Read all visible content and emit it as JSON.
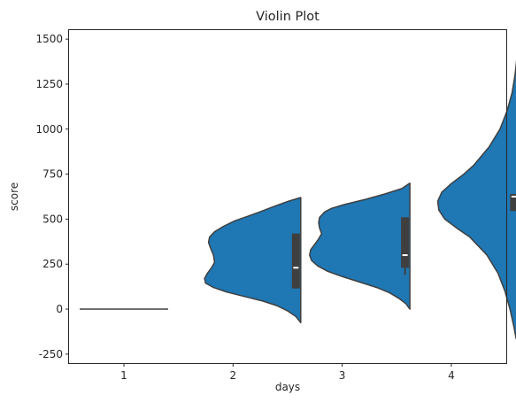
{
  "chart_data": {
    "type": "violin",
    "title": "Violin Plot",
    "xlabel": "days",
    "ylabel": "score",
    "categories": [
      "1",
      "2",
      "3",
      "4"
    ],
    "ylim": [
      -300,
      1550
    ],
    "yticks": [
      -250,
      0,
      250,
      500,
      750,
      1000,
      1250,
      1500
    ],
    "grid": false,
    "split": true,
    "colors": {
      "fill": "#1f77b4",
      "edge": "#3f3f3f",
      "box": "#3f3f3f",
      "median": "#ffffff"
    },
    "violins": [
      {
        "category": "1",
        "constant": 0,
        "profile": []
      },
      {
        "category": "2",
        "box": {
          "q1": 115,
          "median": 230,
          "q3": 420,
          "whisker_low": 115,
          "whisker_high": 420
        },
        "profile": [
          [
            620,
            0.0
          ],
          [
            600,
            0.12
          ],
          [
            570,
            0.27
          ],
          [
            540,
            0.41
          ],
          [
            510,
            0.56
          ],
          [
            490,
            0.66
          ],
          [
            460,
            0.77
          ],
          [
            430,
            0.86
          ],
          [
            400,
            0.91
          ],
          [
            370,
            0.92
          ],
          [
            340,
            0.9
          ],
          [
            300,
            0.87
          ],
          [
            260,
            0.86
          ],
          [
            230,
            0.89
          ],
          [
            200,
            0.93
          ],
          [
            170,
            0.96
          ],
          [
            145,
            0.95
          ],
          [
            120,
            0.87
          ],
          [
            95,
            0.74
          ],
          [
            70,
            0.56
          ],
          [
            45,
            0.38
          ],
          [
            20,
            0.24
          ],
          [
            -10,
            0.13
          ],
          [
            -40,
            0.05
          ],
          [
            -75,
            0.0
          ]
        ]
      },
      {
        "category": "3",
        "box": {
          "q1": 230,
          "median": 300,
          "q3": 510,
          "whisker_low": 190,
          "whisker_high": 510
        },
        "profile": [
          [
            700,
            0.0
          ],
          [
            670,
            0.08
          ],
          [
            640,
            0.25
          ],
          [
            610,
            0.44
          ],
          [
            580,
            0.66
          ],
          [
            560,
            0.78
          ],
          [
            540,
            0.85
          ],
          [
            510,
            0.9
          ],
          [
            480,
            0.91
          ],
          [
            450,
            0.9
          ],
          [
            420,
            0.88
          ],
          [
            390,
            0.91
          ],
          [
            360,
            0.95
          ],
          [
            330,
            0.99
          ],
          [
            300,
            1.0
          ],
          [
            270,
            0.98
          ],
          [
            240,
            0.92
          ],
          [
            210,
            0.82
          ],
          [
            180,
            0.67
          ],
          [
            150,
            0.5
          ],
          [
            120,
            0.33
          ],
          [
            90,
            0.2
          ],
          [
            60,
            0.11
          ],
          [
            30,
            0.04
          ],
          [
            0,
            0.0
          ]
        ]
      },
      {
        "category": "4",
        "box": {
          "q1": 545,
          "median": 625,
          "q3": 640,
          "whisker_low": 545,
          "whisker_high": 640
        },
        "profile": [
          [
            1490,
            0.0
          ],
          [
            1400,
            0.02
          ],
          [
            1300,
            0.04
          ],
          [
            1200,
            0.07
          ],
          [
            1100,
            0.12
          ],
          [
            1000,
            0.19
          ],
          [
            900,
            0.3
          ],
          [
            800,
            0.45
          ],
          [
            750,
            0.55
          ],
          [
            700,
            0.67
          ],
          [
            650,
            0.77
          ],
          [
            600,
            0.81
          ],
          [
            550,
            0.8
          ],
          [
            500,
            0.74
          ],
          [
            450,
            0.62
          ],
          [
            400,
            0.49
          ],
          [
            300,
            0.32
          ],
          [
            200,
            0.21
          ],
          [
            100,
            0.14
          ],
          [
            0,
            0.09
          ],
          [
            -100,
            0.05
          ],
          [
            -160,
            0.03
          ],
          [
            -210,
            0.0
          ]
        ]
      }
    ]
  }
}
